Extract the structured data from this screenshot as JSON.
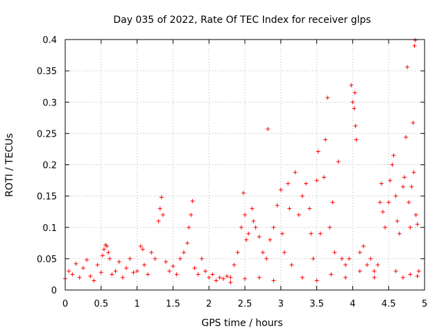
{
  "chart_data": {
    "type": "scatter",
    "title": "Day 035 of 2022, Rate Of TEC Index for receiver glps",
    "xlabel": "GPS time / hours",
    "ylabel": "ROTI / TECUs",
    "xlim": [
      0,
      5
    ],
    "ylim": [
      0,
      0.4
    ],
    "xticks": [
      "0",
      "0.5",
      "1",
      "1.5",
      "2",
      "2.5",
      "3",
      "3.5",
      "4",
      "4.5",
      "5"
    ],
    "yticks": [
      "0",
      "0.05",
      "0.1",
      "0.15",
      "0.2",
      "0.25",
      "0.3",
      "0.35",
      "0.4"
    ],
    "grid": true,
    "marker": "+",
    "color": "#ff0000",
    "series": [
      {
        "points": [
          [
            0.0,
            0.018
          ],
          [
            0.05,
            0.03
          ],
          [
            0.1,
            0.025
          ],
          [
            0.15,
            0.042
          ],
          [
            0.2,
            0.02
          ],
          [
            0.25,
            0.035
          ],
          [
            0.3,
            0.048
          ],
          [
            0.35,
            0.022
          ],
          [
            0.4,
            0.015
          ],
          [
            0.45,
            0.04
          ],
          [
            0.5,
            0.028
          ],
          [
            0.52,
            0.055
          ],
          [
            0.54,
            0.065
          ],
          [
            0.56,
            0.072
          ],
          [
            0.58,
            0.07
          ],
          [
            0.6,
            0.06
          ],
          [
            0.62,
            0.05
          ],
          [
            0.65,
            0.025
          ],
          [
            0.7,
            0.03
          ],
          [
            0.75,
            0.045
          ],
          [
            0.8,
            0.02
          ],
          [
            0.85,
            0.035
          ],
          [
            0.9,
            0.05
          ],
          [
            0.95,
            0.028
          ],
          [
            1.0,
            0.03
          ],
          [
            1.05,
            0.07
          ],
          [
            1.08,
            0.065
          ],
          [
            1.1,
            0.04
          ],
          [
            1.15,
            0.025
          ],
          [
            1.2,
            0.06
          ],
          [
            1.25,
            0.05
          ],
          [
            1.3,
            0.11
          ],
          [
            1.32,
            0.13
          ],
          [
            1.34,
            0.148
          ],
          [
            1.36,
            0.12
          ],
          [
            1.4,
            0.045
          ],
          [
            1.45,
            0.03
          ],
          [
            1.5,
            0.038
          ],
          [
            1.55,
            0.025
          ],
          [
            1.6,
            0.05
          ],
          [
            1.65,
            0.06
          ],
          [
            1.7,
            0.075
          ],
          [
            1.72,
            0.1
          ],
          [
            1.75,
            0.12
          ],
          [
            1.77,
            0.142
          ],
          [
            1.8,
            0.035
          ],
          [
            1.85,
            0.025
          ],
          [
            1.9,
            0.05
          ],
          [
            1.95,
            0.03
          ],
          [
            2.0,
            0.02
          ],
          [
            2.05,
            0.025
          ],
          [
            2.1,
            0.015
          ],
          [
            2.15,
            0.02
          ],
          [
            2.2,
            0.018
          ],
          [
            2.25,
            0.022
          ],
          [
            2.3,
            0.02
          ],
          [
            2.35,
            0.04
          ],
          [
            2.4,
            0.06
          ],
          [
            2.45,
            0.1
          ],
          [
            2.48,
            0.155
          ],
          [
            2.5,
            0.12
          ],
          [
            2.52,
            0.08
          ],
          [
            2.55,
            0.09
          ],
          [
            2.6,
            0.13
          ],
          [
            2.62,
            0.11
          ],
          [
            2.65,
            0.1
          ],
          [
            2.7,
            0.085
          ],
          [
            2.75,
            0.06
          ],
          [
            2.8,
            0.05
          ],
          [
            2.82,
            0.257
          ],
          [
            2.85,
            0.08
          ],
          [
            2.9,
            0.1
          ],
          [
            2.95,
            0.135
          ],
          [
            3.0,
            0.16
          ],
          [
            3.02,
            0.09
          ],
          [
            3.05,
            0.06
          ],
          [
            3.1,
            0.17
          ],
          [
            3.12,
            0.13
          ],
          [
            3.15,
            0.04
          ],
          [
            3.2,
            0.188
          ],
          [
            3.25,
            0.12
          ],
          [
            3.3,
            0.15
          ],
          [
            3.35,
            0.17
          ],
          [
            3.4,
            0.13
          ],
          [
            3.42,
            0.09
          ],
          [
            3.45,
            0.05
          ],
          [
            3.5,
            0.175
          ],
          [
            3.52,
            0.221
          ],
          [
            3.55,
            0.09
          ],
          [
            3.6,
            0.18
          ],
          [
            3.62,
            0.24
          ],
          [
            3.65,
            0.307
          ],
          [
            3.68,
            0.1
          ],
          [
            3.72,
            0.14
          ],
          [
            3.75,
            0.06
          ],
          [
            3.8,
            0.205
          ],
          [
            3.85,
            0.05
          ],
          [
            3.9,
            0.04
          ],
          [
            3.95,
            0.05
          ],
          [
            3.98,
            0.327
          ],
          [
            4.0,
            0.3
          ],
          [
            4.02,
            0.29
          ],
          [
            4.03,
            0.315
          ],
          [
            4.04,
            0.262
          ],
          [
            4.05,
            0.24
          ],
          [
            4.1,
            0.06
          ],
          [
            4.15,
            0.07
          ],
          [
            4.2,
            0.04
          ],
          [
            4.25,
            0.05
          ],
          [
            4.3,
            0.03
          ],
          [
            4.35,
            0.04
          ],
          [
            4.38,
            0.14
          ],
          [
            4.4,
            0.17
          ],
          [
            4.42,
            0.125
          ],
          [
            4.45,
            0.1
          ],
          [
            4.5,
            0.14
          ],
          [
            4.52,
            0.175
          ],
          [
            4.55,
            0.2
          ],
          [
            4.57,
            0.215
          ],
          [
            4.6,
            0.15
          ],
          [
            4.62,
            0.11
          ],
          [
            4.65,
            0.09
          ],
          [
            4.7,
            0.165
          ],
          [
            4.72,
            0.18
          ],
          [
            4.74,
            0.244
          ],
          [
            4.76,
            0.356
          ],
          [
            4.78,
            0.14
          ],
          [
            4.8,
            0.1
          ],
          [
            4.82,
            0.165
          ],
          [
            4.84,
            0.267
          ],
          [
            4.85,
            0.188
          ],
          [
            4.86,
            0.39
          ],
          [
            4.87,
            0.399
          ],
          [
            4.88,
            0.12
          ],
          [
            4.9,
            0.105
          ],
          [
            4.92,
            0.03
          ],
          [
            4.6,
            0.03
          ],
          [
            4.7,
            0.02
          ],
          [
            4.8,
            0.025
          ],
          [
            4.9,
            0.022
          ],
          [
            3.3,
            0.02
          ],
          [
            3.5,
            0.015
          ],
          [
            3.7,
            0.025
          ],
          [
            3.9,
            0.02
          ],
          [
            4.1,
            0.03
          ],
          [
            4.3,
            0.02
          ],
          [
            2.9,
            0.015
          ],
          [
            2.7,
            0.02
          ],
          [
            2.5,
            0.018
          ],
          [
            2.3,
            0.012
          ]
        ]
      }
    ]
  }
}
